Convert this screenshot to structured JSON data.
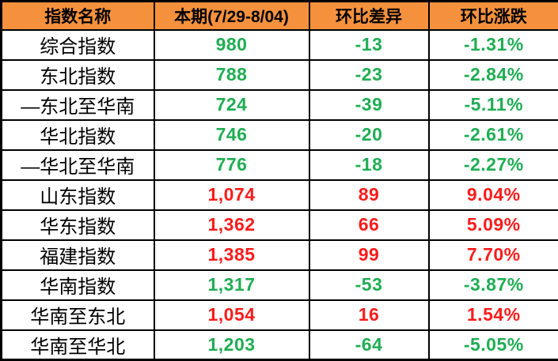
{
  "colors": {
    "header_bg": "#F5913D",
    "up": "#FE1B1B",
    "down": "#1FAD53",
    "border": "#000000",
    "text": "#000000",
    "row_bg": "#FFFFFF"
  },
  "table": {
    "headers": [
      "指数名称",
      "本期(7/29-8/04)",
      "环比差异",
      "环比涨跌"
    ],
    "rows": [
      {
        "name": "综合指数",
        "current": "980",
        "diff": "-13",
        "pct": "-1.31%",
        "trend": "down"
      },
      {
        "name": "东北指数",
        "current": "788",
        "diff": "-23",
        "pct": "-2.84%",
        "trend": "down"
      },
      {
        "name": "—东北至华南",
        "current": "724",
        "diff": "-39",
        "pct": "-5.11%",
        "trend": "down"
      },
      {
        "name": "华北指数",
        "current": "746",
        "diff": "-20",
        "pct": "-2.61%",
        "trend": "down"
      },
      {
        "name": "—华北至华南",
        "current": "776",
        "diff": "-18",
        "pct": "-2.27%",
        "trend": "down"
      },
      {
        "name": "山东指数",
        "current": "1,074",
        "diff": "89",
        "pct": "9.04%",
        "trend": "up"
      },
      {
        "name": "华东指数",
        "current": "1,362",
        "diff": "66",
        "pct": "5.09%",
        "trend": "up"
      },
      {
        "name": "福建指数",
        "current": "1,385",
        "diff": "99",
        "pct": "7.70%",
        "trend": "up"
      },
      {
        "name": "华南指数",
        "current": "1,317",
        "diff": "-53",
        "pct": "-3.87%",
        "trend": "down"
      },
      {
        "name": "华南至东北",
        "current": "1,054",
        "diff": "16",
        "pct": "1.54%",
        "trend": "up"
      },
      {
        "name": "华南至华北",
        "current": "1,203",
        "diff": "-64",
        "pct": "-5.05%",
        "trend": "down"
      }
    ]
  },
  "chart_data": {
    "type": "table",
    "title": "",
    "columns": [
      "指数名称",
      "本期(7/29-8/04)",
      "环比差异",
      "环比涨跌"
    ],
    "rows": [
      [
        "综合指数",
        980,
        -13,
        -1.31
      ],
      [
        "东北指数",
        788,
        -23,
        -2.84
      ],
      [
        "—东北至华南",
        724,
        -39,
        -5.11
      ],
      [
        "华北指数",
        746,
        -20,
        -2.61
      ],
      [
        "—华北至华南",
        776,
        -18,
        -2.27
      ],
      [
        "山东指数",
        1074,
        89,
        9.04
      ],
      [
        "华东指数",
        1362,
        66,
        5.09
      ],
      [
        "福建指数",
        1385,
        99,
        7.7
      ],
      [
        "华南指数",
        1317,
        -53,
        -3.87
      ],
      [
        "华南至东北",
        1054,
        16,
        1.54
      ],
      [
        "华南至华北",
        1203,
        -64,
        -5.05
      ]
    ],
    "notes": "环比涨跌 values are percentages; positive values shown red (up), negative shown green (down)."
  }
}
